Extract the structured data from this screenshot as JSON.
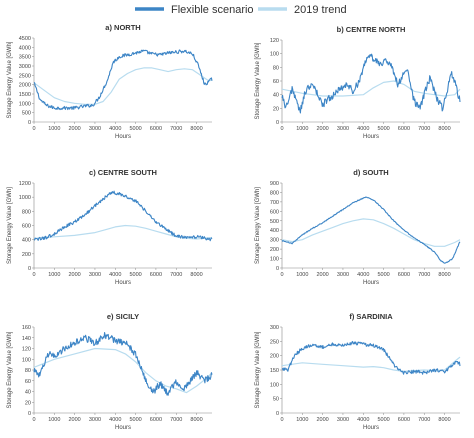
{
  "legend": {
    "entries": [
      {
        "label": "Flexible scenario",
        "color": "#3d85c6"
      },
      {
        "label": "2019 trend",
        "color": "#b8dcef"
      }
    ]
  },
  "chart_data": [
    {
      "type": "line",
      "title": "a) NORTH",
      "xlabel": "Hours",
      "ylabel": "Storage Energy Value [GWh]",
      "xlim": [
        0,
        8760
      ],
      "ylim": [
        0,
        4500
      ],
      "xticks": [
        0,
        1000,
        2000,
        3000,
        4000,
        5000,
        6000,
        7000,
        8000
      ],
      "yticks": [
        0,
        500,
        1000,
        1500,
        2000,
        2500,
        3000,
        3500,
        4000,
        4500
      ],
      "series": [
        {
          "name": "Flexible scenario",
          "color": "#3d85c6",
          "noise": 90,
          "x": [
            0,
            300,
            600,
            1000,
            1500,
            2000,
            2500,
            2900,
            3200,
            3600,
            3900,
            4200,
            4600,
            5000,
            5400,
            5800,
            6200,
            6600,
            7000,
            7400,
            7800,
            8100,
            8400,
            8760
          ],
          "y": [
            2100,
            1200,
            900,
            750,
            750,
            750,
            850,
            900,
            1300,
            2200,
            3200,
            3500,
            3600,
            3700,
            3800,
            3650,
            3600,
            3700,
            3750,
            3800,
            3650,
            3000,
            2000,
            2300
          ]
        },
        {
          "name": "2019 trend",
          "color": "#b8dcef",
          "noise": 0,
          "x": [
            0,
            500,
            1000,
            1500,
            2000,
            2500,
            3000,
            3400,
            3800,
            4200,
            4600,
            5000,
            5400,
            5800,
            6200,
            6600,
            7000,
            7400,
            7800,
            8200,
            8600,
            8760
          ],
          "y": [
            2100,
            1700,
            1300,
            1100,
            1000,
            950,
            950,
            1100,
            1600,
            2300,
            2600,
            2800,
            2900,
            2900,
            2800,
            2700,
            2800,
            2850,
            2800,
            2500,
            2200,
            2250
          ]
        }
      ]
    },
    {
      "type": "line",
      "title": "b) CENTRE NORTH",
      "xlabel": "Hours",
      "ylabel": "Storage Energy Value [GWh]",
      "xlim": [
        0,
        8760
      ],
      "ylim": [
        0,
        120
      ],
      "xticks": [
        0,
        1000,
        2000,
        3000,
        4000,
        5000,
        6000,
        7000,
        8000
      ],
      "yticks": [
        0,
        20,
        40,
        60,
        80,
        100,
        120
      ],
      "series": [
        {
          "name": "Flexible scenario",
          "color": "#3d85c6",
          "noise": 5,
          "x": [
            0,
            200,
            500,
            700,
            900,
            1100,
            1400,
            1700,
            2000,
            2300,
            2600,
            2900,
            3200,
            3500,
            3800,
            4100,
            4400,
            4800,
            5100,
            5400,
            5700,
            6000,
            6200,
            6500,
            6800,
            7100,
            7300,
            7600,
            7900,
            8100,
            8300,
            8500,
            8760
          ],
          "y": [
            40,
            20,
            50,
            30,
            15,
            40,
            55,
            45,
            25,
            35,
            40,
            50,
            55,
            45,
            60,
            90,
            95,
            85,
            90,
            80,
            55,
            70,
            75,
            30,
            20,
            50,
            65,
            35,
            20,
            40,
            75,
            60,
            30
          ]
        },
        {
          "name": "2019 trend",
          "color": "#b8dcef",
          "noise": 0,
          "x": [
            0,
            1000,
            2000,
            3000,
            4000,
            4500,
            5000,
            5500,
            6000,
            6500,
            7000,
            7500,
            8000,
            8500,
            8760
          ],
          "y": [
            48,
            42,
            38,
            38,
            40,
            50,
            58,
            60,
            55,
            45,
            42,
            40,
            38,
            40,
            48
          ]
        }
      ]
    },
    {
      "type": "line",
      "title": "c) CENTRE SOUTH",
      "xlabel": "Hours",
      "ylabel": "Storage Energy Value [GWh]",
      "xlim": [
        0,
        8760
      ],
      "ylim": [
        0,
        1200
      ],
      "xticks": [
        0,
        1000,
        2000,
        3000,
        4000,
        5000,
        6000,
        7000,
        8000
      ],
      "yticks": [
        0,
        200,
        400,
        600,
        800,
        1000,
        1200
      ],
      "series": [
        {
          "name": "Flexible scenario",
          "color": "#3d85c6",
          "noise": 22,
          "x": [
            0,
            500,
            1000,
            1500,
            2000,
            2500,
            3000,
            3500,
            3800,
            4200,
            4600,
            5000,
            5500,
            6000,
            6500,
            7000,
            7500,
            8000,
            8500,
            8760
          ],
          "y": [
            400,
            420,
            480,
            580,
            650,
            750,
            880,
            1000,
            1070,
            1050,
            1000,
            950,
            800,
            650,
            550,
            450,
            430,
            440,
            420,
            400
          ]
        },
        {
          "name": "2019 trend",
          "color": "#b8dcef",
          "noise": 0,
          "x": [
            0,
            1000,
            2000,
            3000,
            3500,
            4000,
            4500,
            5000,
            5500,
            6000,
            6500,
            7000,
            7500,
            8000,
            8760
          ],
          "y": [
            420,
            440,
            460,
            500,
            540,
            580,
            600,
            590,
            560,
            520,
            480,
            440,
            420,
            410,
            430
          ]
        }
      ]
    },
    {
      "type": "line",
      "title": "d) SOUTH",
      "xlabel": "Hours",
      "ylabel": "Storage Energy Value [GWh]",
      "xlim": [
        0,
        8760
      ],
      "ylim": [
        0,
        900
      ],
      "xticks": [
        0,
        1000,
        2000,
        3000,
        4000,
        5000,
        6000,
        7000,
        8000
      ],
      "yticks": [
        0,
        100,
        200,
        300,
        400,
        500,
        600,
        700,
        800,
        900
      ],
      "series": [
        {
          "name": "Flexible scenario",
          "color": "#3d85c6",
          "noise": 5,
          "x": [
            0,
            500,
            1000,
            1500,
            2000,
            2500,
            3000,
            3500,
            4000,
            4200,
            4500,
            5000,
            5500,
            6000,
            6500,
            7000,
            7500,
            7800,
            8000,
            8200,
            8400,
            8760
          ],
          "y": [
            290,
            260,
            350,
            420,
            480,
            550,
            620,
            690,
            740,
            750,
            720,
            620,
            500,
            400,
            320,
            250,
            170,
            80,
            50,
            70,
            100,
            280
          ]
        },
        {
          "name": "2019 trend",
          "color": "#b8dcef",
          "noise": 0,
          "x": [
            0,
            500,
            1000,
            1500,
            2000,
            2500,
            3000,
            3500,
            4000,
            4500,
            5000,
            5500,
            6000,
            6500,
            7000,
            7500,
            8000,
            8500,
            8760
          ],
          "y": [
            300,
            280,
            300,
            350,
            390,
            430,
            470,
            500,
            520,
            510,
            470,
            420,
            360,
            300,
            260,
            230,
            230,
            270,
            300
          ]
        }
      ]
    },
    {
      "type": "line",
      "title": "e) SICILY",
      "xlabel": "Hours",
      "ylabel": "Storage Energy Value [GWh]",
      "xlim": [
        0,
        8760
      ],
      "ylim": [
        0,
        160
      ],
      "xticks": [
        0,
        1000,
        2000,
        3000,
        4000,
        5000,
        6000,
        7000,
        8000
      ],
      "yticks": [
        0,
        20,
        40,
        60,
        80,
        100,
        120,
        140,
        160
      ],
      "series": [
        {
          "name": "Flexible scenario",
          "color": "#3d85c6",
          "noise": 6,
          "x": [
            0,
            300,
            700,
            1000,
            1500,
            2000,
            2500,
            3000,
            3500,
            4000,
            4500,
            5000,
            5300,
            5600,
            5900,
            6200,
            6600,
            7000,
            7300,
            7600,
            8000,
            8400,
            8760
          ],
          "y": [
            80,
            70,
            110,
            105,
            120,
            130,
            140,
            130,
            145,
            135,
            130,
            110,
            80,
            50,
            40,
            55,
            35,
            60,
            40,
            55,
            75,
            60,
            70
          ]
        },
        {
          "name": "2019 trend",
          "color": "#b8dcef",
          "noise": 0,
          "x": [
            0,
            1000,
            2000,
            3000,
            4000,
            4500,
            5000,
            5500,
            6000,
            6500,
            7000,
            7500,
            8000,
            8500,
            8760
          ],
          "y": [
            85,
            100,
            110,
            120,
            118,
            110,
            95,
            75,
            60,
            50,
            45,
            38,
            50,
            65,
            75
          ]
        }
      ]
    },
    {
      "type": "line",
      "title": "f) SARDINIA",
      "xlabel": "Hours",
      "ylabel": "Storage Energy Value [GWh]",
      "xlim": [
        0,
        8760
      ],
      "ylim": [
        0,
        300
      ],
      "xticks": [
        0,
        1000,
        2000,
        3000,
        4000,
        5000,
        6000,
        7000,
        8000
      ],
      "yticks": [
        0,
        50,
        100,
        150,
        200,
        250,
        300
      ],
      "series": [
        {
          "name": "Flexible scenario",
          "color": "#3d85c6",
          "noise": 6,
          "x": [
            0,
            300,
            600,
            1000,
            1500,
            2000,
            2500,
            3000,
            3500,
            4000,
            4500,
            5000,
            5300,
            5600,
            6000,
            6500,
            7000,
            7500,
            8000,
            8300,
            8600,
            8760
          ],
          "y": [
            155,
            150,
            200,
            225,
            240,
            230,
            240,
            235,
            245,
            240,
            235,
            220,
            190,
            160,
            140,
            145,
            140,
            150,
            145,
            160,
            180,
            170
          ]
        },
        {
          "name": "2019 trend",
          "color": "#b8dcef",
          "noise": 0,
          "x": [
            0,
            1000,
            2000,
            3000,
            4000,
            4500,
            5000,
            5500,
            6000,
            6500,
            7000,
            7500,
            8000,
            8500,
            8760
          ],
          "y": [
            165,
            175,
            170,
            165,
            160,
            162,
            158,
            150,
            145,
            148,
            150,
            148,
            150,
            180,
            195
          ]
        }
      ]
    }
  ]
}
